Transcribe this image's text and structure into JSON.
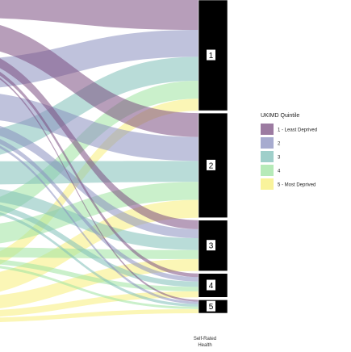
{
  "chart_data": {
    "type": "alluvial",
    "axis": {
      "label_line1": "Self-Rated",
      "label_line2": "Health"
    },
    "strata": [
      "1",
      "2",
      "3",
      "4",
      "5"
    ],
    "stratum_shares": [
      0.37,
      0.35,
      0.17,
      0.08,
      0.045
    ],
    "legend": {
      "title": "UKIMD Quintile",
      "items": [
        {
          "label": "1 - Least Deprived",
          "color": "#7b4f82"
        },
        {
          "label": "2",
          "color": "#8a8fbf"
        },
        {
          "label": "3",
          "color": "#7fbfb8"
        },
        {
          "label": "4",
          "color": "#9ee3a0"
        },
        {
          "label": "5 - Most Deprived",
          "color": "#f7ef7a"
        }
      ]
    },
    "flows": [
      {
        "quintile": "1 - Least Deprived",
        "stratum": "1",
        "share": 0.1
      },
      {
        "quintile": "2",
        "stratum": "1",
        "share": 0.09
      },
      {
        "quintile": "3",
        "stratum": "1",
        "share": 0.08
      },
      {
        "quintile": "4",
        "stratum": "1",
        "share": 0.06
      },
      {
        "quintile": "5 - Most Deprived",
        "stratum": "1",
        "share": 0.04
      },
      {
        "quintile": "1 - Least Deprived",
        "stratum": "2",
        "share": 0.08
      },
      {
        "quintile": "2",
        "stratum": "2",
        "share": 0.08
      },
      {
        "quintile": "3",
        "stratum": "2",
        "share": 0.07
      },
      {
        "quintile": "4",
        "stratum": "2",
        "share": 0.06
      },
      {
        "quintile": "5 - Most Deprived",
        "stratum": "2",
        "share": 0.06
      },
      {
        "quintile": "1 - Least Deprived",
        "stratum": "3",
        "share": 0.03
      },
      {
        "quintile": "2",
        "stratum": "3",
        "share": 0.03
      },
      {
        "quintile": "3",
        "stratum": "3",
        "share": 0.04
      },
      {
        "quintile": "4",
        "stratum": "3",
        "share": 0.03
      },
      {
        "quintile": "5 - Most Deprived",
        "stratum": "3",
        "share": 0.04
      },
      {
        "quintile": "1 - Least Deprived",
        "stratum": "4",
        "share": 0.012
      },
      {
        "quintile": "2",
        "stratum": "4",
        "share": 0.015
      },
      {
        "quintile": "3",
        "stratum": "4",
        "share": 0.018
      },
      {
        "quintile": "4",
        "stratum": "4",
        "share": 0.015
      },
      {
        "quintile": "5 - Most Deprived",
        "stratum": "4",
        "share": 0.02
      },
      {
        "quintile": "1 - Least Deprived",
        "stratum": "5",
        "share": 0.006
      },
      {
        "quintile": "2",
        "stratum": "5",
        "share": 0.008
      },
      {
        "quintile": "3",
        "stratum": "5",
        "share": 0.009
      },
      {
        "quintile": "4",
        "stratum": "5",
        "share": 0.008
      },
      {
        "quintile": "5 - Most Deprived",
        "stratum": "5",
        "share": 0.014
      }
    ]
  }
}
